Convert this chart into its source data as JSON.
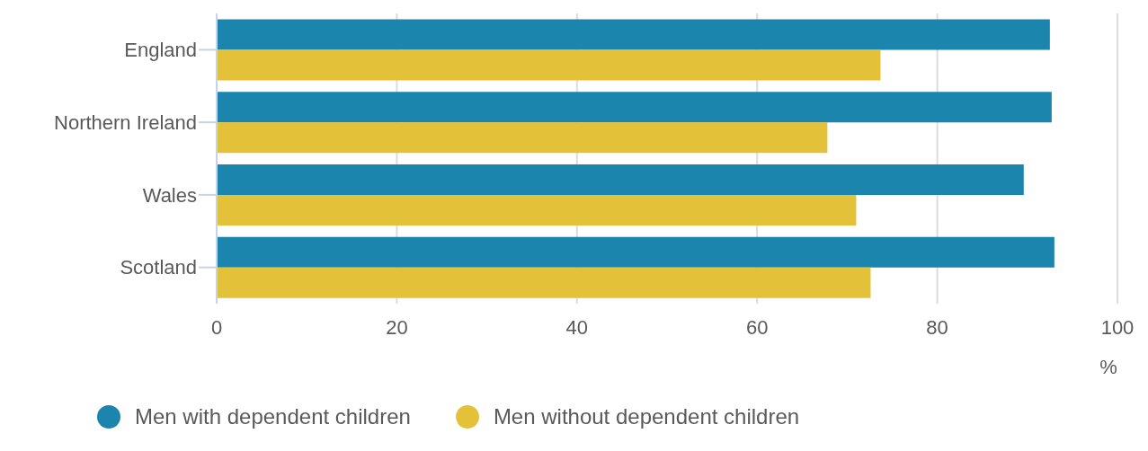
{
  "chart_data": {
    "type": "bar",
    "orientation": "horizontal",
    "categories": [
      "England",
      "Northern Ireland",
      "Wales",
      "Scotland"
    ],
    "series": [
      {
        "name": "Men with dependent children",
        "color": "#1b85ad",
        "values": [
          92.5,
          92.7,
          89.6,
          93.0
        ]
      },
      {
        "name": "Men without dependent children",
        "color": "#e3c23a",
        "values": [
          73.7,
          67.8,
          71.0,
          72.6
        ]
      }
    ],
    "xlim": [
      0,
      100
    ],
    "xticks": [
      0,
      20,
      40,
      60,
      80,
      100
    ],
    "xlabel": "%",
    "grid": "x",
    "legend": "bottom"
  }
}
